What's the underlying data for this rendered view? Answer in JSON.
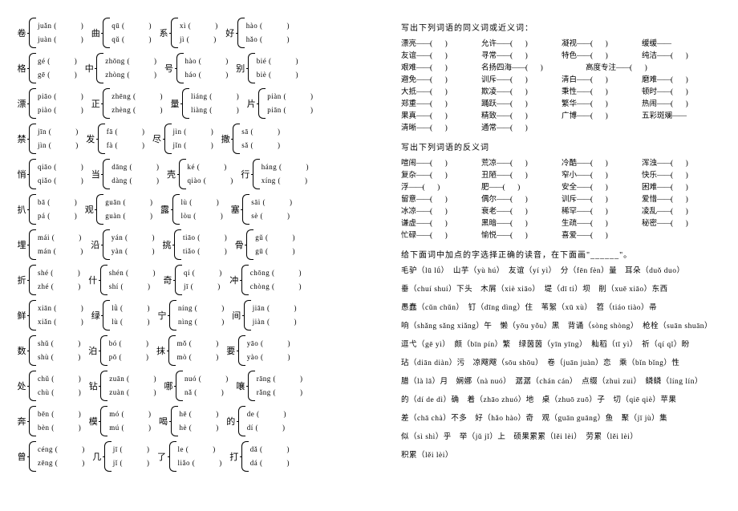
{
  "polyphone_rows": [
    [
      {
        "ch": "卷",
        "p1": "juǎn (",
        "p2": "juàn ("
      },
      {
        "ch": "曲",
        "p1": "qū (",
        "p2": "qǔ ("
      },
      {
        "ch": "系",
        "p1": "xì (",
        "p2": "jì ("
      },
      {
        "ch": "好",
        "p1": "hào (",
        "p2": "hǎo ("
      }
    ],
    [
      {
        "ch": "格",
        "p1": "gé (",
        "p2": "gē ("
      },
      {
        "ch": "中",
        "p1": "zhōng (",
        "p2": "zhòng ("
      },
      {
        "ch": "号",
        "p1": "hào (",
        "p2": "háo ("
      },
      {
        "ch": "别",
        "p1": "bié (",
        "p2": "biè ("
      }
    ],
    [
      {
        "ch": "漂",
        "p1": "piāo (",
        "p2": "piào ("
      },
      {
        "ch": "正",
        "p1": "zhēng (",
        "p2": "zhèng ("
      },
      {
        "ch": "量",
        "p1": "liáng (",
        "p2": "liàng ("
      },
      {
        "ch": "片",
        "p1": "piàn (",
        "p2": "piān ("
      }
    ],
    [
      {
        "ch": "禁",
        "p1": "jīn (",
        "p2": "jìn ("
      },
      {
        "ch": "发",
        "p1": "fā (",
        "p2": "fà ("
      },
      {
        "ch": "尽",
        "p1": "jìn (",
        "p2": "jǐn ("
      },
      {
        "ch": "撒",
        "p1": "sā (",
        "p2": "sǎ ("
      }
    ],
    [
      {
        "ch": "悄",
        "p1": "qiāo (",
        "p2": "qiǎo ("
      },
      {
        "ch": "当",
        "p1": "dāng (",
        "p2": "dàng ("
      },
      {
        "ch": "壳",
        "p1": "ké (",
        "p2": "qiào ("
      },
      {
        "ch": "行",
        "p1": "háng (",
        "p2": "xíng ("
      }
    ],
    [
      {
        "ch": "扒",
        "p1": "bā (",
        "p2": "pá ("
      },
      {
        "ch": "观",
        "p1": "guān (",
        "p2": "guàn ("
      },
      {
        "ch": "露",
        "p1": "lù (",
        "p2": "lòu ("
      },
      {
        "ch": "塞",
        "p1": "sāi (",
        "p2": "sè ("
      }
    ],
    [
      {
        "ch": "埋",
        "p1": "mái (",
        "p2": "mán ("
      },
      {
        "ch": "沿",
        "p1": "yán (",
        "p2": "yàn ("
      },
      {
        "ch": "挑",
        "p1": "tiāo (",
        "p2": "tiǎo ("
      },
      {
        "ch": "骨",
        "p1": "gǔ (",
        "p2": "gū ("
      }
    ],
    [
      {
        "ch": "折",
        "p1": "shé (",
        "p2": "zhé ("
      },
      {
        "ch": "什",
        "p1": "shén (",
        "p2": "shí ("
      },
      {
        "ch": "奇",
        "p1": "qí (",
        "p2": "jī ("
      },
      {
        "ch": "冲",
        "p1": "chōng (",
        "p2": "chòng ("
      }
    ],
    [
      {
        "ch": "鲜",
        "p1": "xiān (",
        "p2": "xiǎn ("
      },
      {
        "ch": "绿",
        "p1": "lǜ (",
        "p2": "lù ("
      },
      {
        "ch": "宁",
        "p1": "níng (",
        "p2": "nìng ("
      },
      {
        "ch": "间",
        "p1": "jiān (",
        "p2": "jiàn ("
      }
    ],
    [
      {
        "ch": "数",
        "p1": "shǔ (",
        "p2": "shù ("
      },
      {
        "ch": "泊",
        "p1": "bó (",
        "p2": "pō ("
      },
      {
        "ch": "抹",
        "p1": "mǒ (",
        "p2": "mò ("
      },
      {
        "ch": "要",
        "p1": "yāo (",
        "p2": "yào ("
      }
    ],
    [
      {
        "ch": "处",
        "p1": "chǔ (",
        "p2": "chù ("
      },
      {
        "ch": "钻",
        "p1": "zuān (",
        "p2": "zuàn ("
      },
      {
        "ch": "哪",
        "p1": "nuó (",
        "p2": "nǎ ("
      },
      {
        "ch": "嚷",
        "p1": "rāng (",
        "p2": "rǎng ("
      }
    ],
    [
      {
        "ch": "奔",
        "p1": "bēn (",
        "p2": "bèn ("
      },
      {
        "ch": "模",
        "p1": "mó (",
        "p2": "mú ("
      },
      {
        "ch": "喝",
        "p1": "hē (",
        "p2": "hè ("
      },
      {
        "ch": "的",
        "p1": "de (",
        "p2": "dí ("
      }
    ],
    [
      {
        "ch": "曾",
        "p1": "céng (",
        "p2": "zēng ("
      },
      {
        "ch": "几",
        "p1": "jī (",
        "p2": "jǐ ("
      },
      {
        "ch": "了",
        "p1": "le (",
        "p2": "liǎo ("
      },
      {
        "ch": "打",
        "p1": "dǎ (",
        "p2": "dá ("
      }
    ]
  ],
  "syn_title": "写出下列词语的同义词或近义词：",
  "syn_rows": [
    [
      {
        "w": "漂亮",
        "t": 1
      },
      {
        "w": "允许",
        "t": 1
      },
      {
        "w": "凝视",
        "t": 1
      },
      {
        "w": "缓缓",
        "t": 0
      }
    ],
    [
      {
        "w": "友谊",
        "t": 1
      },
      {
        "w": "寻常",
        "t": 1
      },
      {
        "w": "特色",
        "t": 1
      },
      {
        "w": "纯洁",
        "t": 1
      }
    ],
    [
      {
        "w": "艰难",
        "t": 1
      },
      {
        "w": "名扬四海",
        "t": 1,
        "wide": 1
      },
      {
        "w": "高度专注",
        "t": 1,
        "wide": 1
      }
    ],
    [
      {
        "w": "避免",
        "t": 1
      },
      {
        "w": "训斥",
        "t": 1
      },
      {
        "w": "清白",
        "t": 1
      },
      {
        "w": "磨难",
        "t": 1
      }
    ],
    [
      {
        "w": "大抵",
        "t": 1
      },
      {
        "w": "欺凌",
        "t": 1
      },
      {
        "w": "秉性",
        "t": 1
      },
      {
        "w": "顿时",
        "t": 1
      }
    ],
    [
      {
        "w": "郑重",
        "t": 1
      },
      {
        "w": "踊跃",
        "t": 1
      },
      {
        "w": "繁华",
        "t": 1
      },
      {
        "w": "热闹",
        "t": 1
      }
    ],
    [
      {
        "w": "果真",
        "t": 1
      },
      {
        "w": "精致",
        "t": 1
      },
      {
        "w": "广博",
        "t": 1
      },
      {
        "w": "五彩斑斓",
        "t": 0
      }
    ],
    [
      {
        "w": "清晰",
        "t": 1
      },
      {
        "w": "通常",
        "t": 1
      }
    ]
  ],
  "ant_title": "写出下列词语的反义词",
  "ant_rows": [
    [
      {
        "w": "喧闹",
        "t": 1
      },
      {
        "w": "荒凉",
        "t": 1
      },
      {
        "w": "冷酷",
        "t": 1
      },
      {
        "w": "浑浊",
        "t": 1
      }
    ],
    [
      {
        "w": "复杂",
        "t": 1
      },
      {
        "w": "丑陋",
        "t": 1
      },
      {
        "w": "窄小",
        "t": 1
      },
      {
        "w": "快乐",
        "t": 1
      }
    ],
    [
      {
        "w": "浮",
        "t": 1
      },
      {
        "w": "肥",
        "t": 1
      },
      {
        "w": "安全",
        "t": 1
      },
      {
        "w": "困难",
        "t": 1
      }
    ],
    [
      {
        "w": "留意",
        "t": 1
      },
      {
        "w": "偶尔",
        "t": 1
      },
      {
        "w": "训斥",
        "t": 1
      },
      {
        "w": "爱惜",
        "t": 1
      }
    ],
    [
      {
        "w": "冰凉",
        "t": 1
      },
      {
        "w": "衰老",
        "t": 1
      },
      {
        "w": "稀罕",
        "t": 1
      },
      {
        "w": "凌乱",
        "t": 1
      }
    ],
    [
      {
        "w": "谦虚",
        "t": 1
      },
      {
        "w": "黑暗",
        "t": 1
      },
      {
        "w": "生疏",
        "t": 1
      },
      {
        "w": "秘密",
        "t": 1
      }
    ],
    [
      {
        "w": "忙碌",
        "t": 1
      },
      {
        "w": "愉悦",
        "t": 1
      },
      {
        "w": "喜爱",
        "t": 1
      }
    ]
  ],
  "phon_title": "给下面词中加点的字选择正确的读音，在下面画\"______\"。",
  "phon_lines": [
    "毛驴（lū lǘ）　山芋（yù hú）　友谊（yí yì）　分（fēn fèn）量　耳朵（duǒ duo）",
    "垂（chuí shuí）下头　木屑（xiè xiāo）　堤（dī tí）坝　削（xuē xiāo）东西",
    "愚蠢（cǔn chǔn）　钉（dīng dìng）住　苇絮（xū xù）　笤（tiáo tiào）帚",
    "响（shǎng sǎng xiǎng）午　懒（yōu yǒu）黑　背诵（sòng shòng）　枪栓（suān shuān）",
    "逗弋（gē yì）　颇（bīn pín）繁　绿茵茵（yīn yīng）　籼稻（tī yì）　祈（qí qǐ）盼",
    "玷（diān diàn）污　凉飕飕（sōu shōu）　卷（juān juàn）恋　乘（bǐn bǐng）性",
    "腊（là lā）月　娴娜（nà nuó）　潺潺（chán cán）　点缀（zhuì zuì）　鳞鳞（líng lín）",
    "的（dí de dì）确　着（zhāo zhuó）地　桌（zhuō zuō）子　切（qiē qiè）苹果",
    "差（chā chà）不多　好（hǎo hào）奇　观（guān guāng）鱼　聚（jī jù）集",
    "似（sì shì）乎　举（jǔ jǐ）上　硕果累累（lěi lèi）　劳累（lěi lèi）",
    "积累（lěi lèi）"
  ]
}
